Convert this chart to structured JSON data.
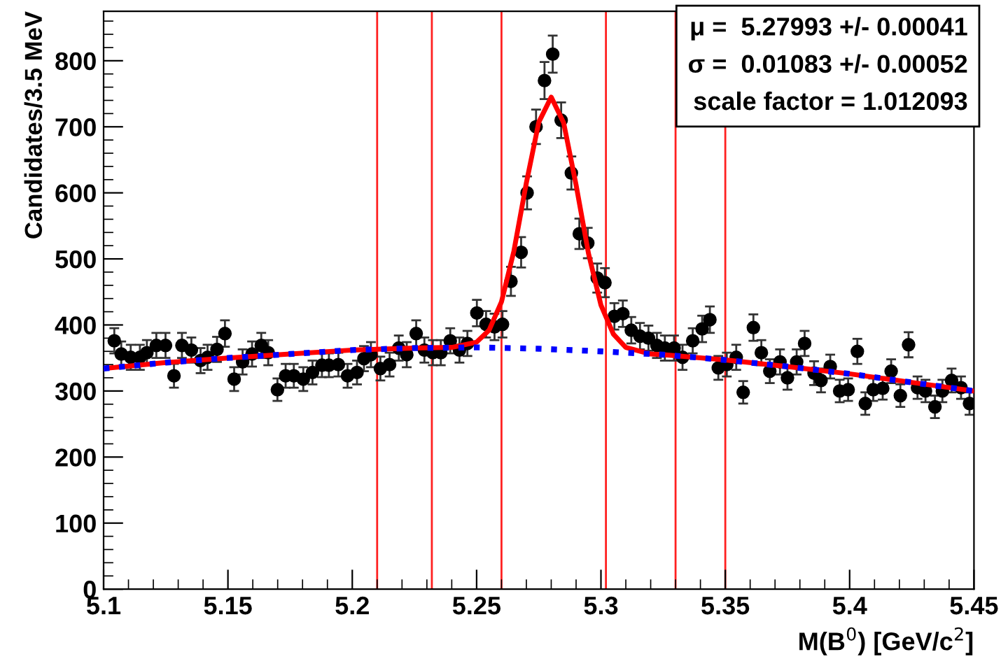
{
  "chart_data": {
    "type": "scatter",
    "xlabel": "M(B$^{0}$) [GeV/c$^{2}$]",
    "ylabel": "Candidates/3.5 MeV",
    "xlim": [
      5.1,
      5.45
    ],
    "xticks": [
      5.1,
      5.15,
      5.2,
      5.25,
      5.3,
      5.35,
      5.4,
      5.45
    ],
    "ylim": [
      0,
      875
    ],
    "yticks": [
      0,
      100,
      200,
      300,
      400,
      500,
      600,
      700,
      800
    ],
    "grid": false,
    "annotations": [
      "μ =  5.27993 +/- 0.00041",
      "σ =  0.01083 +/- 0.00052",
      "scale factor = 1.012093"
    ],
    "ref_lines": [
      {
        "axis": "x",
        "value": 5.21,
        "color": "#ff2020"
      },
      {
        "axis": "x",
        "value": 5.232,
        "color": "#ff2020"
      },
      {
        "axis": "x",
        "value": 5.26,
        "color": "#ff2020"
      },
      {
        "axis": "x",
        "value": 5.302,
        "color": "#ff2020"
      },
      {
        "axis": "x",
        "value": 5.33,
        "color": "#ff2020"
      },
      {
        "axis": "x",
        "value": 5.35,
        "color": "#ff2020"
      }
    ],
    "series": [
      {
        "type": "line",
        "color": "#ff0000",
        "line_style": "solid",
        "marker": "none",
        "x": [
          5.1,
          5.125,
          5.15,
          5.175,
          5.2,
          5.225,
          5.24,
          5.25,
          5.255,
          5.26,
          5.265,
          5.27,
          5.275,
          5.28,
          5.285,
          5.29,
          5.295,
          5.3,
          5.305,
          5.31,
          5.32,
          5.325,
          5.35,
          5.375,
          5.4,
          5.425,
          5.45
        ],
        "values": [
          334,
          343,
          350,
          356,
          362,
          365,
          366,
          374,
          392,
          435,
          512,
          615,
          707,
          745,
          706,
          612,
          508,
          430,
          386,
          366,
          356,
          355,
          347,
          337,
          326,
          313,
          300
        ]
      },
      {
        "type": "line",
        "color": "#0000ff",
        "line_style": "dotted",
        "marker": "none",
        "x": [
          5.1,
          5.125,
          5.15,
          5.175,
          5.2,
          5.225,
          5.25,
          5.275,
          5.3,
          5.325,
          5.35,
          5.375,
          5.4,
          5.425,
          5.45
        ],
        "values": [
          334,
          343,
          350,
          356,
          362,
          365,
          366,
          364,
          360,
          355,
          347,
          337,
          326,
          313,
          300
        ]
      },
      {
        "color": "#000000",
        "marker": "circle",
        "x": [
          5.1043,
          5.1071,
          5.1109,
          5.1146,
          5.1174,
          5.1212,
          5.1249,
          5.1283,
          5.1315,
          5.1353,
          5.139,
          5.1418,
          5.1456,
          5.1488,
          5.1525,
          5.1559,
          5.1597,
          5.1634,
          5.1662,
          5.1699,
          5.1732,
          5.1765,
          5.1803,
          5.184,
          5.1878,
          5.1906,
          5.1944,
          5.1981,
          5.2019,
          5.2047,
          5.2075,
          5.2113,
          5.215,
          5.2187,
          5.2219,
          5.2257,
          5.229,
          5.2324,
          5.2356,
          5.2394,
          5.2431,
          5.2463,
          5.2501,
          5.2538,
          5.2572,
          5.2604,
          5.2638,
          5.2679,
          5.2703,
          5.2739,
          5.2773,
          5.2806,
          5.284,
          5.2881,
          5.2913,
          5.2947,
          5.2985,
          5.3016,
          5.3054,
          5.3088,
          5.3122,
          5.3157,
          5.3191,
          5.3225,
          5.3257,
          5.3294,
          5.3328,
          5.3369,
          5.3407,
          5.3438,
          5.3472,
          5.3506,
          5.3544,
          5.3572,
          5.3613,
          5.3645,
          5.3679,
          5.372,
          5.375,
          5.3787,
          5.3819,
          5.3857,
          5.3885,
          5.3922,
          5.396,
          5.3994,
          5.4031,
          5.4063,
          5.4095,
          5.4133,
          5.4167,
          5.4204,
          5.4237,
          5.4273,
          5.4305,
          5.4343,
          5.4373,
          5.441,
          5.4448,
          5.4482
        ],
        "values": [
          376,
          356,
          351,
          351,
          358,
          369,
          369,
          323,
          369,
          362,
          346,
          351,
          363,
          387,
          318,
          344,
          356,
          369,
          358,
          302,
          323,
          323,
          318,
          328,
          339,
          339,
          340,
          323,
          328,
          349,
          355,
          334,
          340,
          365,
          355,
          387,
          362,
          358,
          358,
          376,
          362,
          372,
          418,
          401,
          397,
          401,
          466,
          510,
          600,
          700,
          770,
          810,
          710,
          630,
          538,
          524,
          471,
          464,
          413,
          417,
          392,
          383,
          380,
          369,
          365,
          365,
          351,
          376,
          394,
          408,
          335,
          340,
          351,
          298,
          396,
          358,
          330,
          344,
          320,
          344,
          372,
          327,
          316,
          337,
          300,
          302,
          360,
          281,
          302,
          304,
          330,
          293,
          370,
          305,
          300,
          276,
          300,
          316,
          305,
          281
        ],
        "errors": [
          19,
          19,
          19,
          19,
          19,
          19,
          19,
          18,
          19,
          19,
          19,
          19,
          19,
          20,
          18,
          19,
          19,
          19,
          19,
          17,
          18,
          18,
          18,
          18,
          18,
          18,
          18,
          18,
          18,
          19,
          19,
          18,
          18,
          19,
          19,
          20,
          19,
          19,
          19,
          19,
          19,
          19,
          20,
          20,
          20,
          20,
          22,
          23,
          25,
          26,
          28,
          28,
          27,
          25,
          23,
          23,
          22,
          22,
          20,
          20,
          20,
          20,
          19,
          19,
          19,
          19,
          19,
          19,
          20,
          20,
          18,
          18,
          19,
          17,
          20,
          19,
          18,
          19,
          18,
          19,
          19,
          18,
          18,
          18,
          17,
          17,
          19,
          17,
          17,
          17,
          18,
          17,
          19,
          17,
          17,
          17,
          17,
          18,
          17,
          17
        ]
      }
    ]
  }
}
